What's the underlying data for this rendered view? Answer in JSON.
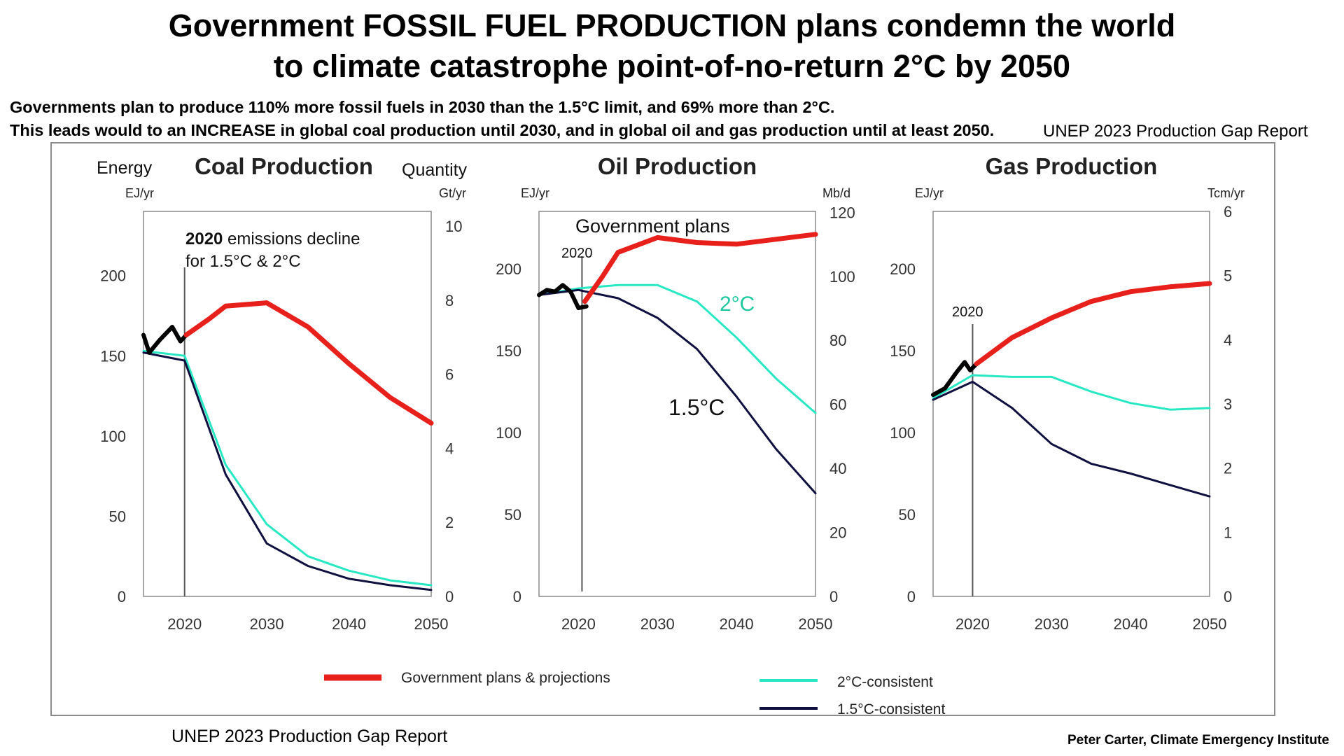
{
  "header": {
    "title_line1": "Government FOSSIL FUEL PRODUCTION plans condemn the world",
    "title_line2": "to climate catastrophe point-of-no-return  2°C by 2050",
    "subtitle_line1": "Governments plan to produce  110% more fossil fuels in 2030 than the 1.5°C limit, and 69% more than 2°C.",
    "subtitle_line2": "This leads would to an INCREASE in global coal production until 2030, and in global oil and gas production until at least 2050.",
    "source_top": "UNEP 2023 Production Gap Report"
  },
  "footer": {
    "source": "UNEP 2023 Production Gap Report",
    "credit": "Peter Carter, Climate Emergency Institute"
  },
  "colors": {
    "government": "#e8201c",
    "historical": "#000000",
    "two_deg": "#27e8c3",
    "one_five_deg": "#101040",
    "axis": "#8a8a8a"
  },
  "legend": {
    "government": "Government plans & projections",
    "two_deg": "2°C-consistent",
    "one_five_deg": "1.5°C-consistent"
  },
  "chart_data": [
    {
      "type": "line",
      "title": "Coal Production",
      "left_axis_label": "Energy",
      "left_unit": "EJ/yr",
      "right_axis_label": "Quantity",
      "right_unit": "Gt/yr",
      "xlim": [
        2015,
        2050
      ],
      "ylim": [
        0,
        240
      ],
      "x_ticks": [
        "2020",
        "2030",
        "2040",
        "2050"
      ],
      "y_ticks": [
        "0",
        "50",
        "100",
        "150",
        "200"
      ],
      "right_ticks": [
        "0",
        "2",
        "4",
        "6",
        "8",
        "10"
      ],
      "right_ylim": [
        0,
        10.4
      ],
      "annotations": [
        "2020 emissions decline",
        "for 1.5°C & 2°C"
      ],
      "series": [
        {
          "key": "historical",
          "x": [
            2015,
            2015.7,
            2017,
            2018.5,
            2019.5,
            2020.2
          ],
          "y": [
            163,
            152,
            160,
            168,
            159,
            163
          ]
        },
        {
          "key": "government",
          "x": [
            2020.2,
            2023,
            2025,
            2030,
            2035,
            2040,
            2045,
            2050
          ],
          "y": [
            163,
            173,
            181,
            183,
            168,
            145,
            124,
            108
          ]
        },
        {
          "key": "two_deg",
          "x": [
            2015,
            2020,
            2025,
            2030,
            2035,
            2040,
            2045,
            2050
          ],
          "y": [
            153,
            150,
            82,
            45,
            25,
            16,
            10,
            7
          ]
        },
        {
          "key": "one_five_deg",
          "x": [
            2015,
            2020,
            2025,
            2030,
            2035,
            2040,
            2045,
            2050
          ],
          "y": [
            152,
            147,
            76,
            33,
            19,
            11,
            7,
            4
          ]
        }
      ]
    },
    {
      "type": "line",
      "title": "Oil Production",
      "left_unit": "EJ/yr",
      "right_unit": "Mb/d",
      "xlim": [
        2015,
        2050
      ],
      "ylim": [
        0,
        235
      ],
      "x_ticks": [
        "2020",
        "2030",
        "2040",
        "2050"
      ],
      "y_ticks": [
        "0",
        "50",
        "100",
        "150",
        "200"
      ],
      "right_ticks": [
        "0",
        "20",
        "40",
        "60",
        "80",
        "100",
        "120"
      ],
      "right_ylim": [
        0,
        120.3
      ],
      "annotations": [
        "Government plans",
        "2020",
        "2°C",
        "1.5°C"
      ],
      "series": [
        {
          "key": "historical",
          "x": [
            2015,
            2016,
            2017,
            2018,
            2019,
            2020,
            2021
          ],
          "y": [
            184,
            187,
            186,
            190,
            186,
            176,
            177
          ]
        },
        {
          "key": "government",
          "x": [
            2020.8,
            2023,
            2025,
            2030,
            2035,
            2040,
            2045,
            2050
          ],
          "y": [
            180,
            195,
            210,
            219,
            216,
            215,
            218,
            221
          ]
        },
        {
          "key": "two_deg",
          "x": [
            2015,
            2020,
            2025,
            2030,
            2035,
            2040,
            2045,
            2050
          ],
          "y": [
            184,
            188,
            190,
            190,
            180,
            158,
            133,
            112
          ]
        },
        {
          "key": "one_five_deg",
          "x": [
            2015,
            2020,
            2025,
            2030,
            2035,
            2040,
            2045,
            2050
          ],
          "y": [
            184,
            187,
            182,
            170,
            151,
            122,
            90,
            63
          ]
        }
      ]
    },
    {
      "type": "line",
      "title": "Gas Production",
      "left_unit": "EJ/yr",
      "right_unit": "Tcm/yr",
      "xlim": [
        2015,
        2050
      ],
      "ylim": [
        0,
        235
      ],
      "x_ticks": [
        "2020",
        "2030",
        "2040",
        "2050"
      ],
      "y_ticks": [
        "0",
        "50",
        "100",
        "150",
        "200"
      ],
      "right_ticks": [
        "0",
        "1",
        "2",
        "3",
        "4",
        "5",
        "6"
      ],
      "right_ylim": [
        0,
        6.0
      ],
      "annotations": [
        "2020"
      ],
      "series": [
        {
          "key": "historical",
          "x": [
            2015,
            2016.5,
            2018,
            2019,
            2019.7,
            2020.5
          ],
          "y": [
            123,
            127,
            137,
            143,
            138,
            142
          ]
        },
        {
          "key": "government",
          "x": [
            2020.5,
            2025,
            2030,
            2035,
            2040,
            2045,
            2050
          ],
          "y": [
            142,
            158,
            170,
            180,
            186,
            189,
            191
          ]
        },
        {
          "key": "two_deg",
          "x": [
            2015,
            2020,
            2025,
            2030,
            2035,
            2040,
            2045,
            2050
          ],
          "y": [
            121,
            135,
            134,
            134,
            125,
            118,
            114,
            115
          ]
        },
        {
          "key": "one_five_deg",
          "x": [
            2015,
            2020,
            2025,
            2030,
            2035,
            2040,
            2045,
            2050
          ],
          "y": [
            120,
            131,
            115,
            93,
            81,
            75,
            68,
            61
          ]
        }
      ]
    }
  ]
}
